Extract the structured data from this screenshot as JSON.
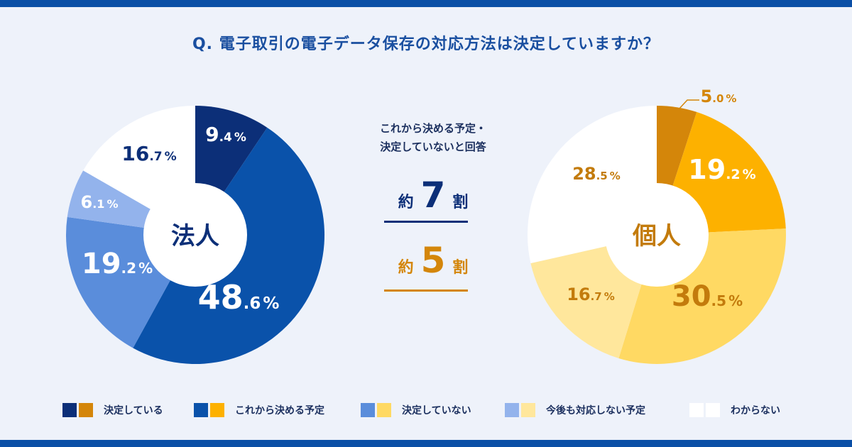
{
  "title": "Q. 電子取引の電子データ保存の対応方法は決定していますか？",
  "middle": {
    "caption_line1": "これから決める予定・",
    "caption_line2": "決定していないと回答",
    "corp_prefix": "約",
    "corp_number": "7",
    "corp_suffix": "割",
    "ind_prefix": "約",
    "ind_number": "5",
    "ind_suffix": "割"
  },
  "legend": [
    {
      "label": "決定している",
      "corp_color": "#0c2f78",
      "ind_color": "#d4860a"
    },
    {
      "label": "これから決める予定",
      "corp_color": "#0a52aa",
      "ind_color": "#fdb100"
    },
    {
      "label": "決定していない",
      "corp_color": "#5a8ddb",
      "ind_color": "#ffd963"
    },
    {
      "label": "今後も対応しない予定",
      "corp_color": "#93b3ec",
      "ind_color": "#ffe79c"
    },
    {
      "label": "わからない",
      "corp_color": "#ffffff",
      "ind_color": "#ffffff"
    }
  ],
  "chart_data": [
    {
      "type": "pie",
      "variant": "donut",
      "title": "法人",
      "categories": [
        "決定している",
        "これから決める予定",
        "決定していない",
        "今後も対応しない予定",
        "わからない"
      ],
      "values": [
        9.4,
        48.6,
        19.2,
        6.1,
        16.7
      ],
      "labels": [
        {
          "int": "9",
          "dec": ".4",
          "pct": "%"
        },
        {
          "int": "48",
          "dec": ".6",
          "pct": "%"
        },
        {
          "int": "19",
          "dec": ".2",
          "pct": "%"
        },
        {
          "int": "6",
          "dec": ".1",
          "pct": "%"
        },
        {
          "int": "16",
          "dec": ".7",
          "pct": "%"
        }
      ],
      "colors": [
        "#0c2f78",
        "#0a52aa",
        "#5a8ddb",
        "#93b3ec",
        "#ffffff"
      ],
      "label_colors": [
        "#ffffff",
        "#ffffff",
        "#ffffff",
        "#ffffff",
        "#0c2f78"
      ],
      "center_color": "#0c2f78"
    },
    {
      "type": "pie",
      "variant": "donut",
      "title": "個人",
      "categories": [
        "決定している",
        "これから決める予定",
        "決定していない",
        "今後も対応しない予定",
        "わからない"
      ],
      "values": [
        5.0,
        19.2,
        30.5,
        16.7,
        28.5
      ],
      "labels": [
        {
          "int": "5",
          "dec": ".0",
          "pct": "%"
        },
        {
          "int": "19",
          "dec": ".2",
          "pct": "%"
        },
        {
          "int": "30",
          "dec": ".5",
          "pct": "%"
        },
        {
          "int": "16",
          "dec": ".7",
          "pct": "%"
        },
        {
          "int": "28",
          "dec": ".5",
          "pct": "%"
        }
      ],
      "colors": [
        "#d4860a",
        "#fdb100",
        "#ffd963",
        "#ffe79c",
        "#ffffff"
      ],
      "label_colors": [
        "#d4860a",
        "#ffffff",
        "#c37b0c",
        "#c37b0c",
        "#c37b0c"
      ],
      "center_color": "#c37b0c"
    }
  ]
}
